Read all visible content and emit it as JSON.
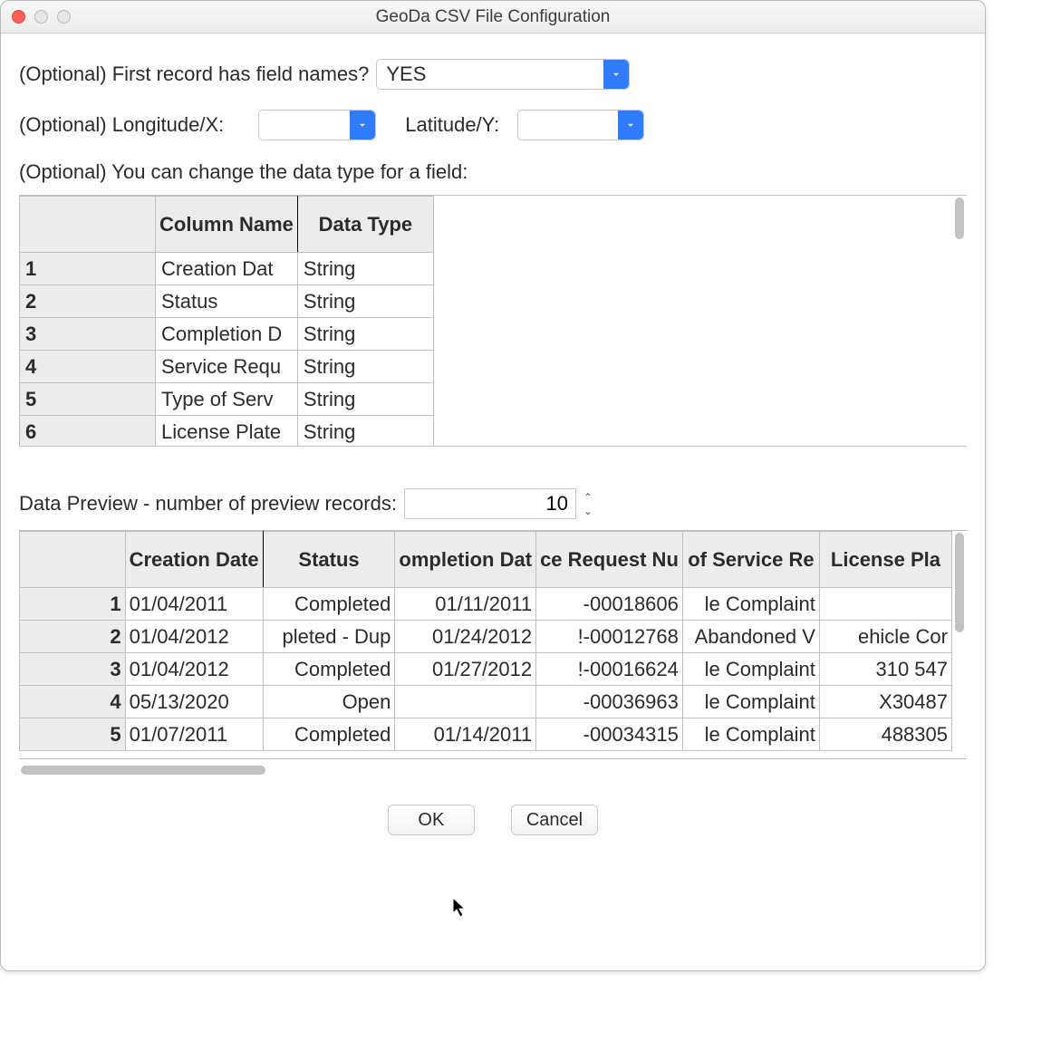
{
  "window": {
    "title": "GeoDa CSV File Configuration"
  },
  "labels": {
    "first_record": "(Optional) First record has field names?",
    "longitude": "(Optional) Longitude/X:",
    "latitude": "Latitude/Y:",
    "change_type": "(Optional) You can change the data type for a field:",
    "preview": "Data Preview - number of preview records:"
  },
  "dropdowns": {
    "first_record_value": "YES",
    "lon_value": "",
    "lat_value": ""
  },
  "field_table": {
    "headers": {
      "col": "Column Name",
      "type": "Data Type"
    },
    "rows": [
      {
        "n": "1",
        "name": "Creation Dat",
        "type": "String"
      },
      {
        "n": "2",
        "name": "Status",
        "type": "String"
      },
      {
        "n": "3",
        "name": "Completion D",
        "type": "String"
      },
      {
        "n": "4",
        "name": "Service Requ",
        "type": "String"
      },
      {
        "n": "5",
        "name": "Type of Serv",
        "type": "String"
      },
      {
        "n": "6",
        "name": "License Plate",
        "type": "String"
      }
    ]
  },
  "preview_count": "10",
  "preview_table": {
    "headers": [
      "Creation Date",
      "Status",
      "ompletion Dat",
      "ce Request Nu",
      "of Service Re",
      "License Pla"
    ],
    "rows": [
      {
        "n": "1",
        "cells": [
          "01/04/2011",
          "Completed",
          "01/11/2011",
          "-00018606",
          "le Complaint",
          ""
        ]
      },
      {
        "n": "2",
        "cells": [
          "01/04/2012",
          "pleted - Dup",
          "01/24/2012",
          "!-00012768",
          "Abandoned V",
          "ehicle Cor"
        ]
      },
      {
        "n": "3",
        "cells": [
          "01/04/2012",
          "Completed",
          "01/27/2012",
          "!-00016624",
          "le Complaint",
          "310 547"
        ]
      },
      {
        "n": "4",
        "cells": [
          "05/13/2020",
          "Open",
          "",
          "-00036963",
          "le Complaint",
          "X30487"
        ]
      },
      {
        "n": "5",
        "cells": [
          "01/07/2011",
          "Completed",
          "01/14/2011",
          "-00034315",
          "le Complaint",
          "488305"
        ]
      }
    ]
  },
  "buttons": {
    "ok": "OK",
    "cancel": "Cancel"
  },
  "colors": {
    "accent": "#2f7bff",
    "header_bg": "#ececec",
    "border": "#bfbfbf"
  }
}
